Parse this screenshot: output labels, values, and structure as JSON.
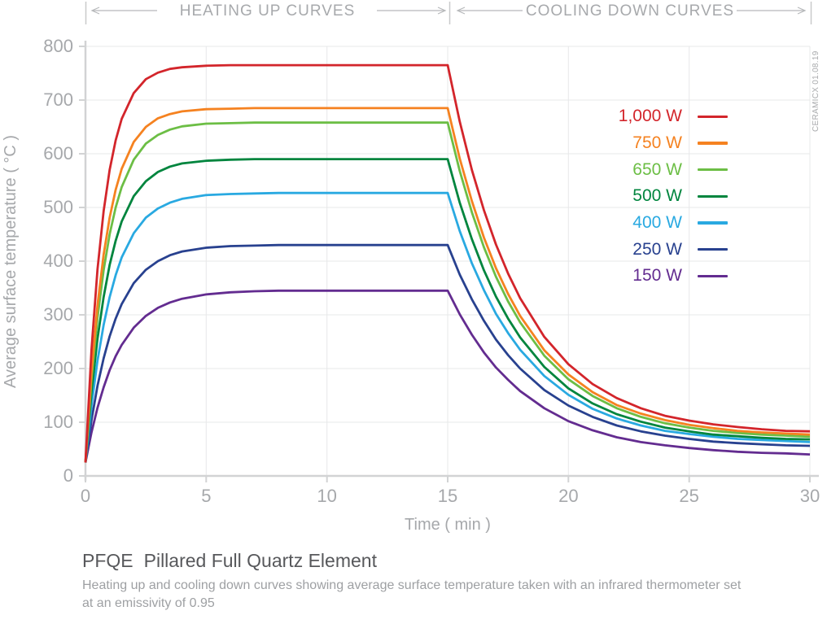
{
  "chart_data": {
    "type": "line",
    "title_code": "PFQE",
    "title_name": "Pillared Full Quartz Element",
    "subtitle_line1": "Heating up and cooling down curves showing average surface temperature taken with an infrared thermometer set",
    "subtitle_line2": "at an emissivity of 0.95",
    "xlabel": "Time ( min )",
    "ylabel": "Average surface temperature ( °C )",
    "xlim": [
      0,
      30
    ],
    "ylim": [
      0,
      800
    ],
    "xticks": [
      0,
      5,
      10,
      15,
      20,
      25,
      30
    ],
    "yticks": [
      0,
      100,
      200,
      300,
      400,
      500,
      600,
      700,
      800
    ],
    "grid": true,
    "legend_position": "upper right",
    "annotations": {
      "heating": "HEATING UP CURVES",
      "cooling": "COOLING DOWN CURVES"
    },
    "watermark": "CERAMICX 01.08.19",
    "heat_off_time_min": 15,
    "x": [
      0,
      0.25,
      0.5,
      0.75,
      1,
      1.25,
      1.5,
      2,
      2.5,
      3,
      3.5,
      4,
      5,
      6,
      7,
      8,
      10,
      12,
      14,
      15,
      15.5,
      16,
      16.5,
      17,
      17.5,
      18,
      19,
      20,
      21,
      22,
      23,
      24,
      25,
      26,
      27,
      28,
      29,
      30
    ],
    "series": [
      {
        "id": "1000w",
        "name": "1,000 W",
        "color": "#d3252b",
        "steady_state_c": 765,
        "values": [
          25,
          235,
          385,
          493,
          570,
          625,
          665,
          713,
          739,
          751,
          758,
          761,
          764,
          765,
          765,
          765,
          765,
          765,
          765,
          765,
          660,
          570,
          495,
          431,
          377,
          331,
          259,
          208,
          171,
          145,
          126,
          112,
          103,
          96,
          91,
          87,
          84,
          83
        ]
      },
      {
        "id": "750w",
        "name": "750 W",
        "color": "#f58220",
        "steady_state_c": 685,
        "values": [
          25,
          193,
          318,
          412,
          481,
          533,
          572,
          622,
          650,
          666,
          674,
          679,
          683,
          684,
          685,
          685,
          685,
          685,
          685,
          685,
          591,
          512,
          444,
          387,
          339,
          298,
          234,
          189,
          156,
          132,
          116,
          104,
          95,
          89,
          84,
          81,
          79,
          77
        ]
      },
      {
        "id": "650w",
        "name": "650 W",
        "color": "#6cbe45",
        "steady_state_c": 658,
        "values": [
          25,
          179,
          295,
          383,
          450,
          500,
          538,
          589,
          619,
          635,
          645,
          651,
          656,
          657,
          658,
          658,
          658,
          658,
          658,
          658,
          568,
          491,
          426,
          371,
          325,
          286,
          224,
          180,
          149,
          126,
          110,
          98,
          90,
          84,
          80,
          77,
          75,
          73
        ]
      },
      {
        "id": "500w",
        "name": "500 W",
        "color": "#00853e",
        "steady_state_c": 590,
        "values": [
          25,
          156,
          256,
          333,
          393,
          438,
          474,
          521,
          549,
          566,
          576,
          582,
          587,
          589,
          590,
          590,
          590,
          590,
          590,
          590,
          509,
          441,
          383,
          334,
          293,
          258,
          203,
          163,
          135,
          115,
          101,
          90,
          83,
          77,
          74,
          71,
          69,
          68
        ]
      },
      {
        "id": "400w",
        "name": "400 W",
        "color": "#29a9e1",
        "steady_state_c": 527,
        "values": [
          25,
          131,
          215,
          281,
          333,
          374,
          407,
          452,
          481,
          498,
          509,
          516,
          523,
          525,
          526,
          527,
          527,
          527,
          527,
          527,
          456,
          396,
          346,
          302,
          266,
          235,
          186,
          151,
          125,
          107,
          94,
          84,
          78,
          73,
          69,
          67,
          65,
          63
        ]
      },
      {
        "id": "250w",
        "name": "250 W",
        "color": "#28418f",
        "steady_state_c": 430,
        "values": [
          25,
          104,
          168,
          219,
          260,
          293,
          320,
          359,
          384,
          400,
          411,
          418,
          425,
          428,
          429,
          430,
          430,
          430,
          430,
          430,
          375,
          329,
          289,
          254,
          225,
          200,
          160,
          131,
          110,
          94,
          83,
          75,
          69,
          64,
          61,
          59,
          57,
          56
        ]
      },
      {
        "id": "150w",
        "name": "150 W",
        "color": "#632c90",
        "steady_state_c": 345,
        "values": [
          25,
          81,
          127,
          165,
          197,
          223,
          244,
          276,
          298,
          313,
          323,
          330,
          338,
          342,
          344,
          345,
          345,
          345,
          345,
          345,
          301,
          263,
          230,
          202,
          179,
          158,
          126,
          102,
          85,
          72,
          63,
          57,
          52,
          48,
          45,
          43,
          42,
          40
        ]
      }
    ]
  }
}
